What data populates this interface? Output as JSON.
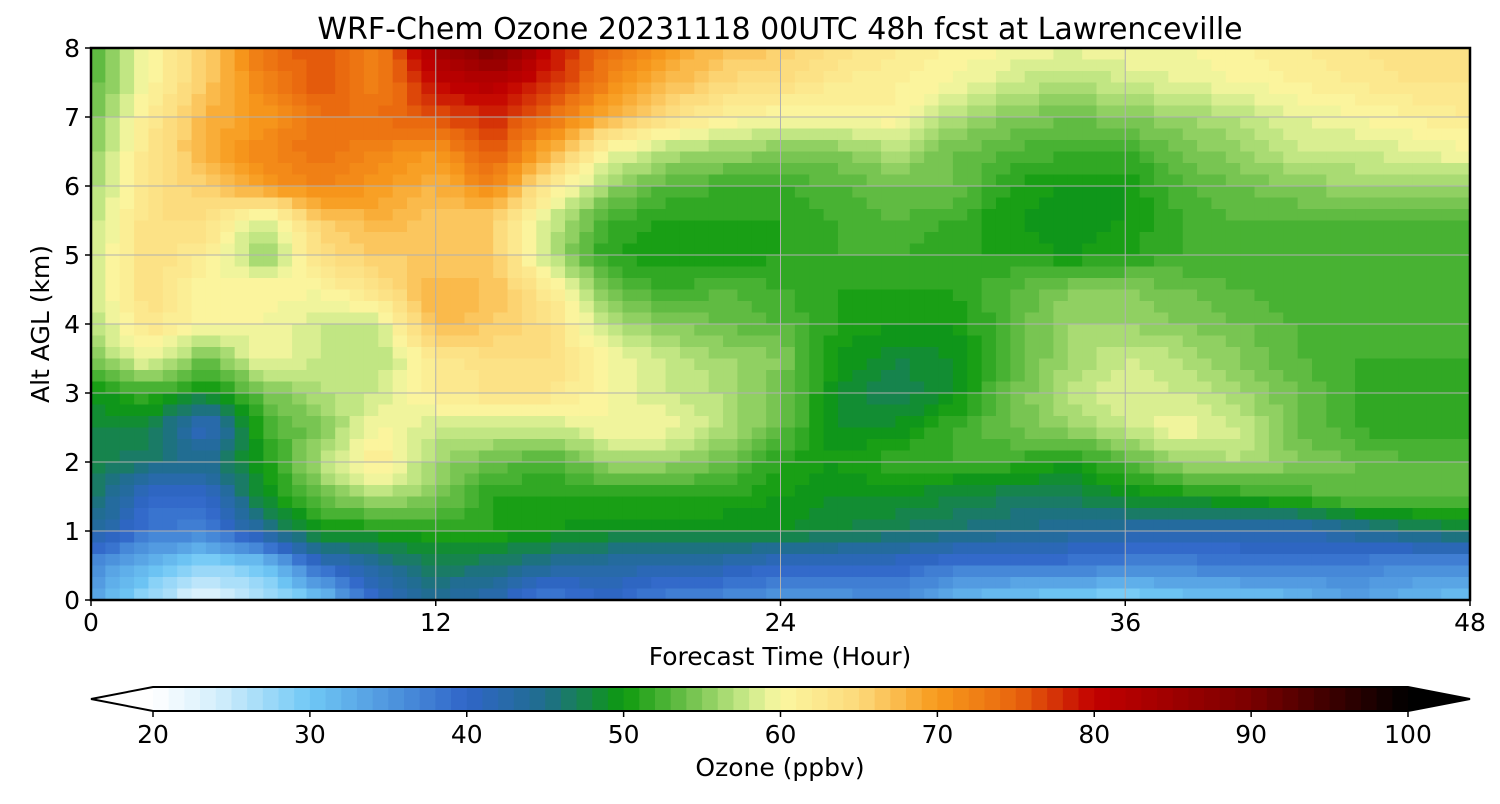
{
  "chart_data": {
    "type": "heatmap",
    "title": "WRF-Chem Ozone  20231118 00UTC 48h fcst at Lawrenceville",
    "xlabel": "Forecast Time (Hour)",
    "ylabel": "Alt AGL (km)",
    "xlim": [
      0,
      48
    ],
    "ylim": [
      0,
      8
    ],
    "xticks": [
      0,
      12,
      24,
      36,
      48
    ],
    "yticks": [
      0,
      1,
      2,
      3,
      4,
      5,
      6,
      7,
      8
    ],
    "grid": true,
    "x_hours": [
      0,
      2,
      4,
      6,
      8,
      10,
      12,
      14,
      16,
      18,
      20,
      22,
      24,
      26,
      28,
      30,
      32,
      34,
      36,
      38,
      40,
      42,
      44,
      46,
      48
    ],
    "y_km": [
      0,
      0.5,
      1,
      1.5,
      2,
      2.5,
      3,
      3.5,
      4,
      4.5,
      5,
      5.5,
      6,
      6.5,
      7,
      7.5,
      8
    ],
    "z_ppbv": [
      [
        34,
        27,
        22,
        26,
        30,
        40,
        44,
        42,
        37,
        40,
        37,
        36,
        35,
        35,
        36,
        32,
        30,
        29,
        28,
        30,
        30,
        31,
        34,
        32,
        30
      ],
      [
        36,
        32,
        28,
        30,
        40,
        44,
        47,
        46,
        44,
        43,
        42,
        42,
        40,
        40,
        40,
        38,
        38,
        38,
        37,
        37,
        38,
        38,
        37,
        36,
        36
      ],
      [
        44,
        38,
        37,
        44,
        50,
        50,
        51,
        51,
        50,
        49,
        49,
        49,
        49,
        48,
        47,
        46,
        45,
        44,
        43,
        42,
        42,
        42,
        44,
        46,
        48
      ],
      [
        47,
        40,
        40,
        49,
        54,
        57,
        55,
        51,
        51,
        51,
        51,
        51,
        50,
        49,
        49,
        48,
        47,
        47,
        49,
        50,
        51,
        52,
        54,
        54,
        54
      ],
      [
        48,
        46,
        45,
        50,
        57,
        62,
        56,
        54,
        52,
        56,
        56,
        54,
        51,
        50,
        52,
        52,
        52,
        50,
        53,
        56,
        57,
        55,
        54,
        53,
        53
      ],
      [
        48,
        48,
        40,
        52,
        55,
        60,
        58,
        58,
        58,
        60,
        60,
        57,
        54,
        49,
        49,
        52,
        54,
        56,
        58,
        60,
        58,
        54,
        52,
        51,
        51
      ],
      [
        49,
        52,
        49,
        54,
        57,
        58,
        62,
        63,
        63,
        60,
        58,
        57,
        54,
        49,
        47,
        49,
        54,
        57,
        59,
        58,
        56,
        54,
        52,
        51,
        51
      ],
      [
        55,
        60,
        54,
        60,
        58,
        57,
        62,
        64,
        64,
        60,
        58,
        56,
        55,
        50,
        48,
        49,
        53,
        56,
        58,
        57,
        55,
        53,
        52,
        52,
        52
      ],
      [
        57,
        63,
        60,
        60,
        58,
        58,
        68,
        66,
        64,
        57,
        55,
        54,
        53,
        51,
        50,
        50,
        53,
        56,
        56,
        55,
        54,
        53,
        52,
        52,
        52
      ],
      [
        58,
        64,
        60,
        61,
        60,
        64,
        68,
        67,
        62,
        54,
        52,
        53,
        52,
        51,
        51,
        51,
        53,
        55,
        55,
        54,
        53,
        52,
        52,
        52,
        52
      ],
      [
        58,
        64,
        62,
        55,
        64,
        66,
        66,
        66,
        57,
        51,
        50,
        50,
        51,
        52,
        52,
        51,
        51,
        50,
        51,
        52,
        52,
        52,
        52,
        52,
        52
      ],
      [
        57,
        64,
        64,
        58,
        66,
        68,
        66,
        66,
        58,
        52,
        51,
        51,
        51,
        52,
        53,
        52,
        50,
        49,
        50,
        52,
        53,
        53,
        53,
        53,
        53
      ],
      [
        56,
        63,
        66,
        70,
        72,
        70,
        68,
        72,
        62,
        56,
        53,
        52,
        52,
        53,
        54,
        54,
        51,
        50,
        50,
        53,
        54,
        55,
        56,
        56,
        56
      ],
      [
        55,
        63,
        68,
        72,
        74,
        72,
        70,
        76,
        68,
        60,
        57,
        56,
        55,
        55,
        57,
        54,
        53,
        52,
        52,
        54,
        56,
        58,
        58,
        59,
        60
      ],
      [
        54,
        62,
        68,
        70,
        74,
        74,
        76,
        78,
        74,
        68,
        64,
        61,
        60,
        60,
        61,
        57,
        55,
        54,
        55,
        56,
        57,
        59,
        60,
        61,
        62
      ],
      [
        53,
        60,
        66,
        72,
        76,
        72,
        80,
        82,
        78,
        72,
        68,
        65,
        64,
        62,
        61,
        60,
        58,
        57,
        58,
        59,
        60,
        61,
        62,
        63,
        63
      ],
      [
        52,
        60,
        66,
        74,
        76,
        72,
        84,
        90,
        80,
        74,
        70,
        67,
        66,
        64,
        62,
        61,
        60,
        59,
        60,
        60,
        61,
        62,
        63,
        64,
        64
      ]
    ],
    "colorbar": {
      "label": "Ozone  (ppbv)",
      "min": 20,
      "max": 100,
      "step": 1,
      "ticks": [
        20,
        30,
        40,
        50,
        60,
        70,
        80,
        90,
        100
      ],
      "extend": "both",
      "color_stops": [
        {
          "value": 20,
          "color": "#ffffff"
        },
        {
          "value": 24,
          "color": "#d5effc"
        },
        {
          "value": 30,
          "color": "#6fc8f5"
        },
        {
          "value": 40,
          "color": "#3065c8"
        },
        {
          "value": 45,
          "color": "#1f6e8c"
        },
        {
          "value": 50,
          "color": "#0d9a0d"
        },
        {
          "value": 54,
          "color": "#6cc04a"
        },
        {
          "value": 58,
          "color": "#cdeb8b"
        },
        {
          "value": 60,
          "color": "#fbf7a1"
        },
        {
          "value": 65,
          "color": "#fcd97a"
        },
        {
          "value": 70,
          "color": "#f89a1c"
        },
        {
          "value": 75,
          "color": "#e8650d"
        },
        {
          "value": 80,
          "color": "#c20000"
        },
        {
          "value": 90,
          "color": "#7a0000"
        },
        {
          "value": 100,
          "color": "#000000"
        }
      ]
    }
  }
}
